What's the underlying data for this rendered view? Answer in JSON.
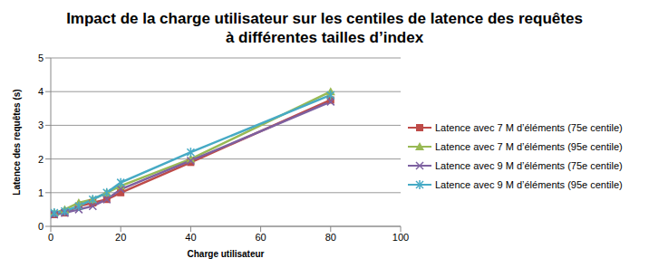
{
  "chart_data": {
    "type": "line",
    "title": "Impact de la charge utilisateur sur les centiles de latence des requêtes\nà différentes tailles d’index",
    "x_label": "Charge utilisateur",
    "y_label": "Latence des requêtes (s)",
    "x": [
      1,
      4,
      8,
      12,
      16,
      20,
      40,
      80
    ],
    "xlim": [
      0,
      100
    ],
    "xticks": [
      0,
      20,
      40,
      60,
      80,
      100
    ],
    "ylim": [
      0,
      5
    ],
    "yticks": [
      0,
      1,
      2,
      3,
      4,
      5
    ],
    "grid": true,
    "legend": "right",
    "series": [
      {
        "name": "Latence avec 7 M d’éléments (75e centile)",
        "color": "#be4b48",
        "marker": "square",
        "values": [
          0.35,
          0.4,
          0.6,
          0.7,
          0.8,
          1.0,
          1.9,
          3.75
        ]
      },
      {
        "name": "Latence avec 7 M d’éléments (95e centile)",
        "color": "#98b954",
        "marker": "triangle",
        "values": [
          0.4,
          0.5,
          0.7,
          0.8,
          1.0,
          1.2,
          2.0,
          4.0
        ]
      },
      {
        "name": "Latence avec 9 M d’éléments (75e centile)",
        "color": "#7d60a0",
        "marker": "x",
        "values": [
          0.35,
          0.4,
          0.5,
          0.6,
          0.8,
          1.1,
          1.95,
          3.7
        ]
      },
      {
        "name": "Latence avec 9 M d’éléments (95e centile)",
        "color": "#46aac5",
        "marker": "star",
        "values": [
          0.4,
          0.45,
          0.6,
          0.8,
          1.0,
          1.3,
          2.2,
          3.9
        ]
      }
    ]
  }
}
